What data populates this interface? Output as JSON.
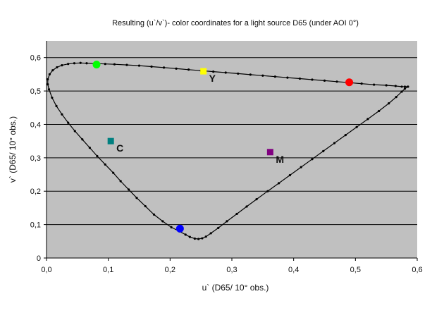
{
  "chart_data": {
    "type": "scatter",
    "title": "Resulting (u`/v`)- color coordinates for a light source D65 (under AOI 0°)",
    "xlabel": "u` (D65/ 10° obs.)",
    "ylabel": "v` (D65/ 10° obs.)",
    "xlim": [
      0,
      0.6
    ],
    "ylim": [
      0,
      0.65
    ],
    "x_ticks": [
      0.0,
      0.1,
      0.2,
      0.3,
      0.4,
      0.5,
      0.6
    ],
    "x_tick_labels": [
      "0,0",
      "0,1",
      "0,2",
      "0,3",
      "0,4",
      "0,5",
      "0,6"
    ],
    "y_ticks": [
      0,
      0.1,
      0.2,
      0.3,
      0.4,
      0.5,
      0.6
    ],
    "y_tick_labels": [
      "0",
      "0,1",
      "0,2",
      "0,3",
      "0,4",
      "0,5",
      "0,6"
    ],
    "grid": "horizontal",
    "background_color": "#c0c0c0",
    "locus": [
      [
        0.585,
        0.513
      ],
      [
        0.58,
        0.513
      ],
      [
        0.575,
        0.513
      ],
      [
        0.565,
        0.515
      ],
      [
        0.55,
        0.517
      ],
      [
        0.53,
        0.519
      ],
      [
        0.51,
        0.522
      ],
      [
        0.49,
        0.525
      ],
      [
        0.47,
        0.528
      ],
      [
        0.45,
        0.531
      ],
      [
        0.43,
        0.534
      ],
      [
        0.41,
        0.537
      ],
      [
        0.39,
        0.54
      ],
      [
        0.37,
        0.543
      ],
      [
        0.35,
        0.546
      ],
      [
        0.33,
        0.549
      ],
      [
        0.31,
        0.552
      ],
      [
        0.29,
        0.555
      ],
      [
        0.27,
        0.558
      ],
      [
        0.25,
        0.561
      ],
      [
        0.23,
        0.564
      ],
      [
        0.21,
        0.567
      ],
      [
        0.19,
        0.57
      ],
      [
        0.17,
        0.573
      ],
      [
        0.15,
        0.576
      ],
      [
        0.13,
        0.578
      ],
      [
        0.11,
        0.58
      ],
      [
        0.095,
        0.581
      ],
      [
        0.08,
        0.582
      ],
      [
        0.065,
        0.583
      ],
      [
        0.055,
        0.584
      ],
      [
        0.045,
        0.583
      ],
      [
        0.035,
        0.581
      ],
      [
        0.025,
        0.577
      ],
      [
        0.017,
        0.571
      ],
      [
        0.01,
        0.562
      ],
      [
        0.005,
        0.55
      ],
      [
        0.002,
        0.535
      ],
      [
        0.002,
        0.52
      ],
      [
        0.004,
        0.505
      ],
      [
        0.009,
        0.48
      ],
      [
        0.016,
        0.455
      ],
      [
        0.025,
        0.43
      ],
      [
        0.035,
        0.405
      ],
      [
        0.046,
        0.38
      ],
      [
        0.058,
        0.355
      ],
      [
        0.07,
        0.33
      ],
      [
        0.082,
        0.305
      ],
      [
        0.095,
        0.28
      ],
      [
        0.108,
        0.255
      ],
      [
        0.12,
        0.23
      ],
      [
        0.133,
        0.205
      ],
      [
        0.146,
        0.18
      ],
      [
        0.16,
        0.155
      ],
      [
        0.174,
        0.13
      ],
      [
        0.188,
        0.11
      ],
      [
        0.202,
        0.092
      ],
      [
        0.215,
        0.08
      ],
      [
        0.225,
        0.07
      ],
      [
        0.232,
        0.063
      ],
      [
        0.24,
        0.058
      ],
      [
        0.246,
        0.057
      ],
      [
        0.252,
        0.059
      ],
      [
        0.258,
        0.064
      ],
      [
        0.266,
        0.074
      ],
      [
        0.278,
        0.09
      ],
      [
        0.292,
        0.11
      ],
      [
        0.308,
        0.132
      ],
      [
        0.324,
        0.154
      ],
      [
        0.34,
        0.176
      ],
      [
        0.358,
        0.2
      ],
      [
        0.376,
        0.224
      ],
      [
        0.394,
        0.248
      ],
      [
        0.412,
        0.272
      ],
      [
        0.43,
        0.296
      ],
      [
        0.448,
        0.32
      ],
      [
        0.466,
        0.344
      ],
      [
        0.484,
        0.368
      ],
      [
        0.502,
        0.392
      ],
      [
        0.52,
        0.416
      ],
      [
        0.538,
        0.44
      ],
      [
        0.554,
        0.463
      ],
      [
        0.566,
        0.482
      ],
      [
        0.575,
        0.498
      ],
      [
        0.58,
        0.507
      ],
      [
        0.585,
        0.513
      ]
    ],
    "markers": [
      {
        "label": "",
        "u": 0.081,
        "v": 0.579,
        "color": "#00ff00",
        "shape": "circle"
      },
      {
        "label": "Y",
        "u": 0.254,
        "v": 0.559,
        "color": "#ffff00",
        "shape": "square"
      },
      {
        "label": "",
        "u": 0.49,
        "v": 0.526,
        "color": "#ff0000",
        "shape": "circle"
      },
      {
        "label": "C",
        "u": 0.104,
        "v": 0.35,
        "color": "#008080",
        "shape": "square"
      },
      {
        "label": "M",
        "u": 0.362,
        "v": 0.317,
        "color": "#800080",
        "shape": "square"
      },
      {
        "label": "",
        "u": 0.216,
        "v": 0.088,
        "color": "#0000ff",
        "shape": "circle"
      }
    ]
  }
}
